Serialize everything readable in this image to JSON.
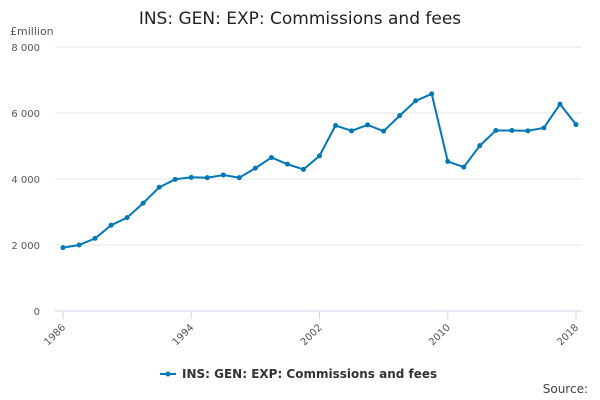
{
  "chart_data": {
    "type": "line",
    "title": "INS: GEN: EXP: Commissions and fees",
    "ylabel": "£million",
    "xlabel": "",
    "ylim": [
      0,
      8000
    ],
    "y_ticks": [
      0,
      2000,
      4000,
      6000,
      8000
    ],
    "y_tick_labels": [
      "0",
      "2 000",
      "4 000",
      "6 000",
      "8 000"
    ],
    "x_ticks": [
      1986,
      1994,
      2002,
      2010,
      2018
    ],
    "x_tick_labels": [
      "1986",
      "1994",
      "2002",
      "2010",
      "2018"
    ],
    "grid": true,
    "legend_position": "bottom",
    "color": "#0077b6",
    "x": [
      1986,
      1987,
      1988,
      1989,
      1990,
      1991,
      1992,
      1993,
      1994,
      1995,
      1996,
      1997,
      1998,
      1999,
      2000,
      2001,
      2002,
      2003,
      2004,
      2005,
      2006,
      2007,
      2008,
      2009,
      2010,
      2011,
      2012,
      2013,
      2014,
      2015,
      2016,
      2017,
      2018
    ],
    "series": [
      {
        "name": "INS: GEN: EXP: Commissions and fees",
        "values": [
          1920,
          2000,
          2200,
          2600,
          2830,
          3270,
          3750,
          3990,
          4050,
          4040,
          4120,
          4040,
          4330,
          4650,
          4450,
          4290,
          4700,
          5620,
          5460,
          5640,
          5450,
          5920,
          6370,
          6580,
          4530,
          4360,
          5010,
          5470,
          5470,
          5460,
          5550,
          6270,
          5650
        ]
      }
    ],
    "source_label": "Source:"
  }
}
